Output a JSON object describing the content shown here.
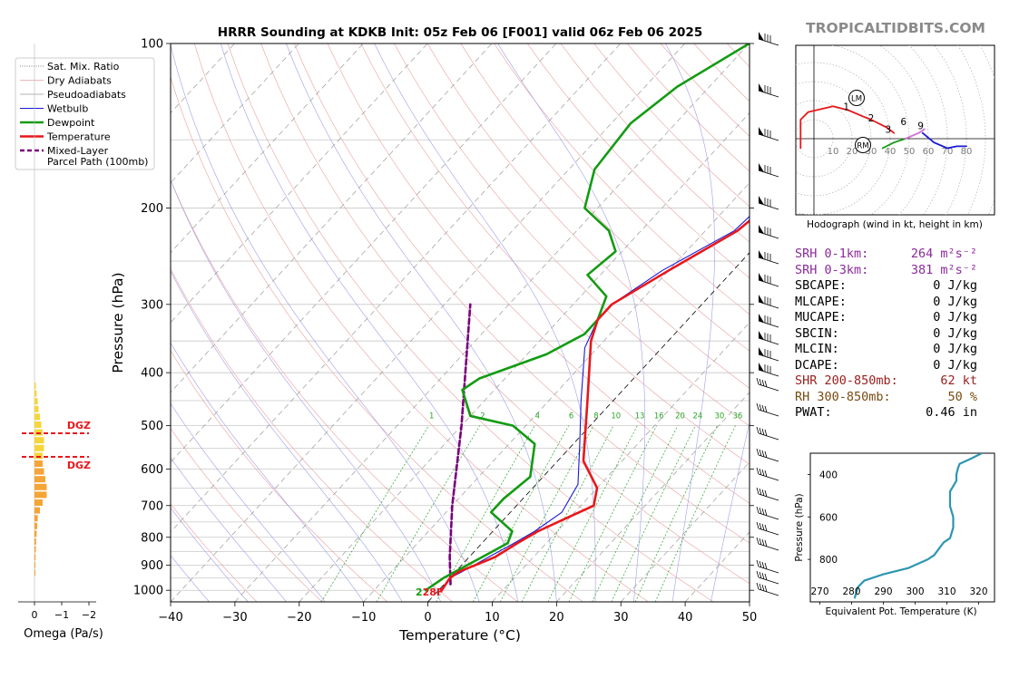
{
  "header": {
    "title": "HRRR Sounding at KDKB Init: 05z Feb 06 [F001] valid 06z Feb 06 2025",
    "watermark": "TROPICALTIDBITS.COM"
  },
  "chart_data": [
    {
      "type": "line",
      "name": "skew-t",
      "xlabel": "Temperature (°C)",
      "ylabel": "Pressure (hPa)",
      "xlim": [
        -40,
        50
      ],
      "ylim": [
        1050,
        100
      ],
      "y_scale": "log",
      "x_ticks": [
        "−40",
        "−30",
        "−20",
        "−10",
        "0",
        "10",
        "20",
        "30",
        "40",
        "50"
      ],
      "y_ticks": [
        "100",
        "200",
        "300",
        "400",
        "500",
        "600",
        "700",
        "800",
        "900",
        "1000"
      ],
      "legend": [
        "Sat. Mix. Ratio",
        "Dry Adiabats",
        "Pseudoadiabats",
        "Wetbulb",
        "Dewpoint",
        "Temperature",
        "Mixed-Layer\nParcel Path (100mb)"
      ],
      "legend_position": "top-left",
      "mixing_ratio_labels": [
        "1",
        "2",
        "4",
        "6",
        "8",
        "10",
        "13",
        "16",
        "20",
        "24",
        "30",
        "36"
      ],
      "surface_label": "28F",
      "series": [
        {
          "name": "Temperature",
          "color": "#e8171b",
          "points": [
            [
              0.5,
              1000
            ],
            [
              0,
              950
            ],
            [
              0.5,
              925
            ],
            [
              4,
              870
            ],
            [
              5.5,
              820
            ],
            [
              7,
              780
            ],
            [
              12,
              700
            ],
            [
              10,
              650
            ],
            [
              4,
              580
            ],
            [
              -4,
              450
            ],
            [
              -12,
              350
            ],
            [
              -14,
              320
            ],
            [
              -14,
              300
            ],
            [
              -10,
              260
            ],
            [
              -5,
              220
            ],
            [
              -4,
              200
            ],
            [
              -5,
              160
            ],
            [
              -6,
              130
            ],
            [
              -5,
              110
            ],
            [
              -5.5,
              100
            ]
          ]
        },
        {
          "name": "Dewpoint",
          "color": "#139b13",
          "points": [
            [
              -2,
              1000
            ],
            [
              -1,
              950
            ],
            [
              2,
              870
            ],
            [
              4,
              820
            ],
            [
              3,
              780
            ],
            [
              -3,
              720
            ],
            [
              -3,
              680
            ],
            [
              -2,
              620
            ],
            [
              -6,
              540
            ],
            [
              -12,
              500
            ],
            [
              -20,
              480
            ],
            [
              -25,
              430
            ],
            [
              -24,
              410
            ],
            [
              -17,
              370
            ],
            [
              -14,
              340
            ],
            [
              -14,
              320
            ],
            [
              -16,
              290
            ],
            [
              -22,
              265
            ],
            [
              -21,
              240
            ],
            [
              -25,
              220
            ],
            [
              -32,
              200
            ],
            [
              -36,
              170
            ],
            [
              -37,
              140
            ],
            [
              -35,
              120
            ],
            [
              -30,
              100
            ]
          ]
        },
        {
          "name": "Wetbulb",
          "color": "#1a1ad6",
          "points": [
            [
              0.3,
              1000
            ],
            [
              0,
              950
            ],
            [
              1,
              925
            ],
            [
              3,
              870
            ],
            [
              5,
              820
            ],
            [
              6.5,
              780
            ],
            [
              8,
              720
            ],
            [
              6.5,
              640
            ],
            [
              1,
              540
            ],
            [
              -5,
              450
            ],
            [
              -12,
              360
            ],
            [
              -14,
              320
            ],
            [
              -14,
              300
            ],
            [
              -11,
              260
            ],
            [
              -5.5,
              220
            ],
            [
              -5,
              200
            ],
            [
              -6,
              160
            ],
            [
              -6.5,
              130
            ],
            [
              -5.5,
              110
            ],
            [
              -6,
              100
            ]
          ]
        },
        {
          "name": "Mixed-Layer Parcel Path (100mb)",
          "color": "#7a007a",
          "points": [
            [
              1,
              975
            ],
            [
              -3,
              870
            ],
            [
              -10,
              700
            ],
            [
              -20,
              500
            ],
            [
              -36,
              300
            ]
          ]
        }
      ]
    },
    {
      "type": "line",
      "name": "hodograph",
      "caption": "Hodograph (wind in kt, height in km)",
      "ring_labels": [
        "10",
        "20",
        "30",
        "40",
        "50",
        "60",
        "70",
        "80"
      ],
      "height_labels": [
        "1",
        "2",
        "3",
        "6",
        "9"
      ],
      "markers": [
        "LM",
        "RM"
      ],
      "series": [
        {
          "name": "0-1 km",
          "color": "#e8171b",
          "points": [
            [
              -7,
              -5
            ],
            [
              -7,
              10
            ],
            [
              -3,
              14
            ],
            [
              10,
              17
            ],
            [
              18,
              15
            ],
            [
              25,
              12
            ]
          ]
        },
        {
          "name": "1-3 km",
          "color": "#e8171b",
          "points": [
            [
              25,
              12
            ],
            [
              30,
              10
            ],
            [
              38,
              6
            ],
            [
              42,
              3
            ]
          ]
        },
        {
          "name": "3-6 km",
          "color": "#139b13",
          "points": [
            [
              36,
              -5
            ],
            [
              42,
              -2
            ],
            [
              48,
              0
            ]
          ]
        },
        {
          "name": "6-9 km",
          "color": "#d070d0",
          "points": [
            [
              48,
              0
            ],
            [
              55,
              3
            ],
            [
              58,
              5
            ]
          ]
        },
        {
          "name": "9+ km",
          "color": "#1a1ad6",
          "points": [
            [
              57,
              3
            ],
            [
              63,
              -2
            ],
            [
              70,
              -5
            ],
            [
              75,
              -4
            ],
            [
              80,
              -4
            ]
          ]
        }
      ]
    },
    {
      "type": "line",
      "name": "theta-e",
      "xlabel": "Equivalent Pot. Temperature (K)",
      "ylabel": "Pressure (hPa)",
      "xlim": [
        267,
        325
      ],
      "ylim": [
        1000,
        300
      ],
      "x_ticks": [
        "270",
        "280",
        "290",
        "300",
        "310",
        "320"
      ],
      "y_ticks": [
        "400",
        "600",
        "800"
      ],
      "series": [
        {
          "name": "theta-e",
          "color": "#2d96b0",
          "points": [
            [
              281,
              980
            ],
            [
              282,
              930
            ],
            [
              284,
              900
            ],
            [
              290,
              870
            ],
            [
              298,
              840
            ],
            [
              304,
              800
            ],
            [
              306,
              780
            ],
            [
              309,
              720
            ],
            [
              311,
              700
            ],
            [
              312,
              650
            ],
            [
              312,
              600
            ],
            [
              311,
              550
            ],
            [
              311,
              480
            ],
            [
              313,
              430
            ],
            [
              313,
              400
            ],
            [
              313.5,
              370
            ],
            [
              314,
              350
            ],
            [
              317,
              330
            ],
            [
              321,
              300
            ]
          ]
        }
      ]
    },
    {
      "type": "bar",
      "name": "omega",
      "xlabel": "Omega (Pa/s)",
      "x_ticks": [
        "0",
        "−1",
        "−2"
      ],
      "dgz_label": "DGZ",
      "values": [
        0.05,
        0.08,
        0.12,
        0.15,
        0.2,
        0.25,
        0.3,
        0.35,
        0.35,
        0.3,
        0.3,
        0.35,
        0.4,
        0.45,
        0.45,
        0.3,
        0.2,
        0.12,
        0.1,
        0.08,
        0.06,
        0.05,
        0.04,
        0.03,
        0.03
      ]
    }
  ],
  "indices": {
    "srh_1": {
      "label": "SRH 0-1km:",
      "value": "264 m²s⁻²",
      "color": "#8b2a9b"
    },
    "srh_3": {
      "label": "SRH 0-3km:",
      "value": "381 m²s⁻²",
      "color": "#8b2a9b"
    },
    "sbcape": {
      "label": "SBCAPE:",
      "value": "0 J/kg",
      "color": "#000000"
    },
    "mlcape": {
      "label": "MLCAPE:",
      "value": "0 J/kg",
      "color": "#000000"
    },
    "mucape": {
      "label": "MUCAPE:",
      "value": "0 J/kg",
      "color": "#000000"
    },
    "sbcin": {
      "label": "SBCIN:",
      "value": "0 J/kg",
      "color": "#000000"
    },
    "mlcin": {
      "label": "MLCIN:",
      "value": "0 J/kg",
      "color": "#000000"
    },
    "dcape": {
      "label": "DCAPE:",
      "value": "0 J/kg",
      "color": "#000000"
    },
    "shr": {
      "label": "SHR 200-850mb:",
      "value": "62 kt",
      "color": "#9b2020"
    },
    "rh": {
      "label": "RH 300-850mb:",
      "value": "50 %",
      "color": "#7a4a10"
    },
    "pwat": {
      "label": "PWAT:",
      "value": "0.46 in",
      "color": "#000000"
    }
  }
}
